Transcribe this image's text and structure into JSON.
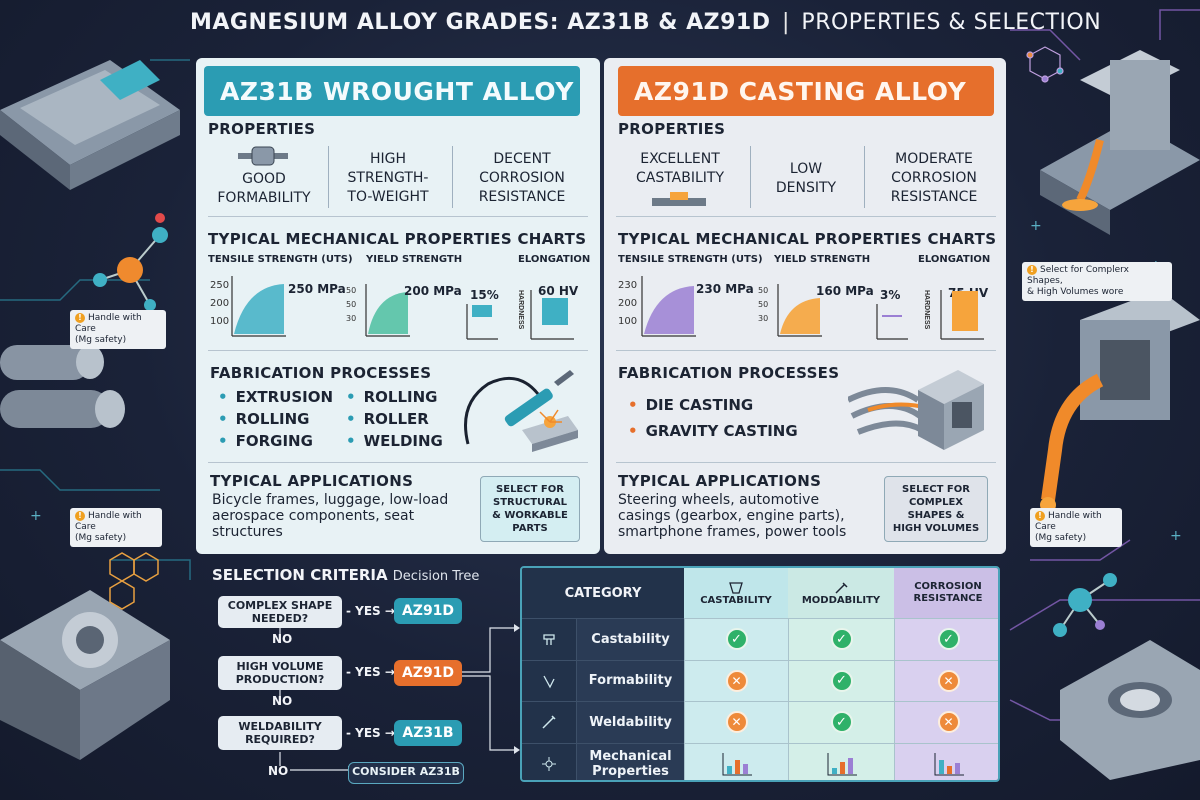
{
  "title": {
    "main": "MAGNESIUM ALLOY GRADES: AZ31B & AZ91D",
    "separator": "|",
    "sub": "PROPERTIES & SELECTION"
  },
  "left_panel": {
    "header": "AZ31B WROUGHT ALLOY",
    "properties_title": "PROPERTIES",
    "props": [
      "GOOD\nFORMABILITY",
      "HIGH\nSTRENGTH-\nTO-WEIGHT",
      "DECENT\nCORROSION\nRESISTANCE"
    ],
    "charts_title": "TYPICAL MECHANICAL PROPERTIES CHARTS",
    "uts_label": "TENSILE STRENGTH (UTS)",
    "uts_ticks": [
      "250",
      "200",
      "100"
    ],
    "uts_value": "250 MPa",
    "yield_label": "YIELD STRENGTH",
    "yield_ticks": [
      "50",
      "50",
      "30"
    ],
    "yield_value": "200 MPa",
    "elong_value": "15%",
    "elong_label": "ELONGATION",
    "hardness_axis": "HARDNESS",
    "hardness_value": "60 HV",
    "fab_title": "FABRICATION PROCESSES",
    "fab_col1": [
      "EXTRUSION",
      "ROLLING",
      "FORGING"
    ],
    "fab_col2": [
      "ROLLING",
      "ROLLER",
      "WELDING"
    ],
    "apps_title": "TYPICAL APPLICATIONS",
    "apps_text": "Bicycle frames, luggage, low-load\naerospace components, seat\nstructures",
    "select_text": "SELECT FOR\nSTRUCTURAL\n& WORKABLE\nPARTS"
  },
  "right_panel": {
    "header": "AZ91D CASTING ALLOY",
    "properties_title": "PROPERTIES",
    "props": [
      "EXCELLENT\nCASTABILITY",
      "LOW\nDENSITY",
      "MODERATE\nCORROSION\nRESISTANCE"
    ],
    "charts_title": "TYPICAL MECHANICAL PROPERTIES CHARTS",
    "uts_label": "TENSILE STRENGTH (UTS)",
    "uts_ticks": [
      "230",
      "200",
      "100"
    ],
    "uts_value": "230 MPa",
    "yield_label": "YIELD STRENGTH",
    "yield_ticks": [
      "50",
      "50",
      "30"
    ],
    "yield_value": "160 MPa",
    "elong_value": "3%",
    "elong_label": "ELONGATION",
    "hardness_axis": "HARDNESS",
    "hardness_value": "75 HV",
    "fab_title": "FABRICATION PROCESSES",
    "fab_list": [
      "DIE CASTING",
      "GRAVITY CASTING"
    ],
    "apps_title": "TYPICAL APPLICATIONS",
    "apps_text": "Steering wheels, automotive\ncasings (gearbox, engine parts),\nsmartphone frames, power tools",
    "select_text": "SELECT FOR\nCOMPLEX\nSHAPES &\nHIGH VOLUMES"
  },
  "decision_tree": {
    "title": "SELECTION CRITERIA",
    "subtitle": "Decision Tree",
    "q1": "COMPLEX SHAPE\nNEEDED?",
    "q2": "HIGH VOLUME\nPRODUCTION?",
    "q3": "WELDABILITY\nREQUIRED?",
    "yes": "- YES →",
    "no": "NO",
    "a1": "AZ91D",
    "a2": "AZ91D",
    "a3": "AZ31B",
    "final_no": "NO",
    "final": "CONSIDER AZ31B"
  },
  "table": {
    "category_header": "CATEGORY",
    "col_headers": [
      "CASTABILITY",
      "MODDABILITY",
      "CORROSION\nRESISTANCE"
    ],
    "rows": [
      {
        "label": "Castability",
        "icon": "mold-icon",
        "values": [
          "check",
          "check",
          "check"
        ]
      },
      {
        "label": "Formability",
        "icon": "press-icon",
        "values": [
          "cross",
          "check",
          "cross"
        ]
      },
      {
        "label": "Weldability",
        "icon": "weld-torch-icon",
        "values": [
          "cross",
          "check",
          "cross"
        ]
      },
      {
        "label": "Mechanical\nProperties",
        "icon": "gear-network-icon",
        "values": [
          "bars",
          "bars",
          "bars"
        ]
      }
    ]
  },
  "notes": {
    "left1": "Handle with Care\n(Mg safety)",
    "left2": "Handle with Care\n(Mg safety)",
    "right1": "Select for Complerx Shapes,\n& High Volumes wore",
    "right2": "Handle with Care\n(Mg safety)"
  },
  "chart_data": [
    {
      "type": "area",
      "title": "TENSILE STRENGTH (UTS)",
      "series": [
        {
          "name": "AZ31B",
          "values": [
            250
          ]
        },
        {
          "name": "AZ91D",
          "values": [
            230
          ]
        }
      ],
      "ylabel": "MPa"
    },
    {
      "type": "area",
      "title": "YIELD STRENGTH",
      "series": [
        {
          "name": "AZ31B",
          "values": [
            200
          ]
        },
        {
          "name": "AZ91D",
          "values": [
            160
          ]
        }
      ],
      "ylabel": "MPa"
    },
    {
      "type": "bar",
      "title": "ELONGATION",
      "categories": [
        "AZ31B",
        "AZ91D"
      ],
      "values": [
        15,
        3
      ],
      "ylabel": "%"
    },
    {
      "type": "bar",
      "title": "HARDNESS",
      "categories": [
        "AZ31B",
        "AZ91D"
      ],
      "values": [
        60,
        75
      ],
      "ylabel": "HV"
    }
  ],
  "colors": {
    "teal": "#2b9cb3",
    "orange": "#e66f2c",
    "purple": "#9b7fd4",
    "check_green": "#2fb169",
    "background": "#1a2238"
  }
}
